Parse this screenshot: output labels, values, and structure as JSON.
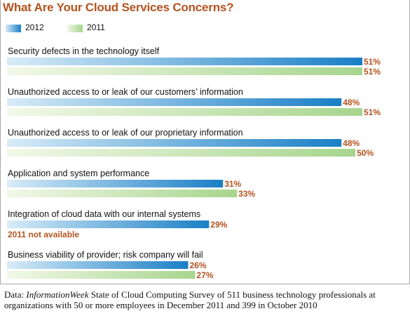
{
  "chart_data": {
    "type": "bar",
    "orientation": "horizontal",
    "title": "What Are Your Cloud Services Concerns?",
    "categories": [
      "Security defects in the technology itself",
      "Unauthorized access to or leak of our customers’ information",
      "Unauthorized access to or leak of our proprietary information",
      "Application and system performance",
      "Integration of cloud data with our internal systems",
      "Business viability of provider; risk company will fail"
    ],
    "series": [
      {
        "name": "2012",
        "values": [
          51,
          48,
          48,
          31,
          29,
          26
        ],
        "color_start": "#d8ecf8",
        "color_end": "#1a7fc6"
      },
      {
        "name": "2011",
        "values": [
          51,
          51,
          50,
          33,
          null,
          27
        ],
        "color_start": "#f2f8e8",
        "color_end": "#a7d58d"
      }
    ],
    "value_suffix": "%",
    "missing_note": "2011 not available",
    "xlim": [
      0,
      51
    ],
    "legend": "top-left",
    "grid": false
  },
  "colors": {
    "title": "#b4531f",
    "value_label": "#b4531f",
    "frame": "#a9a9a9"
  },
  "footnote": {
    "prefix": "Data: ",
    "publication": "InformationWeek",
    "text": " State of Cloud Computing Survey of 511 business technology professionals at organizations with 50 or more employees in December 2011 and 399 in October 2010"
  }
}
